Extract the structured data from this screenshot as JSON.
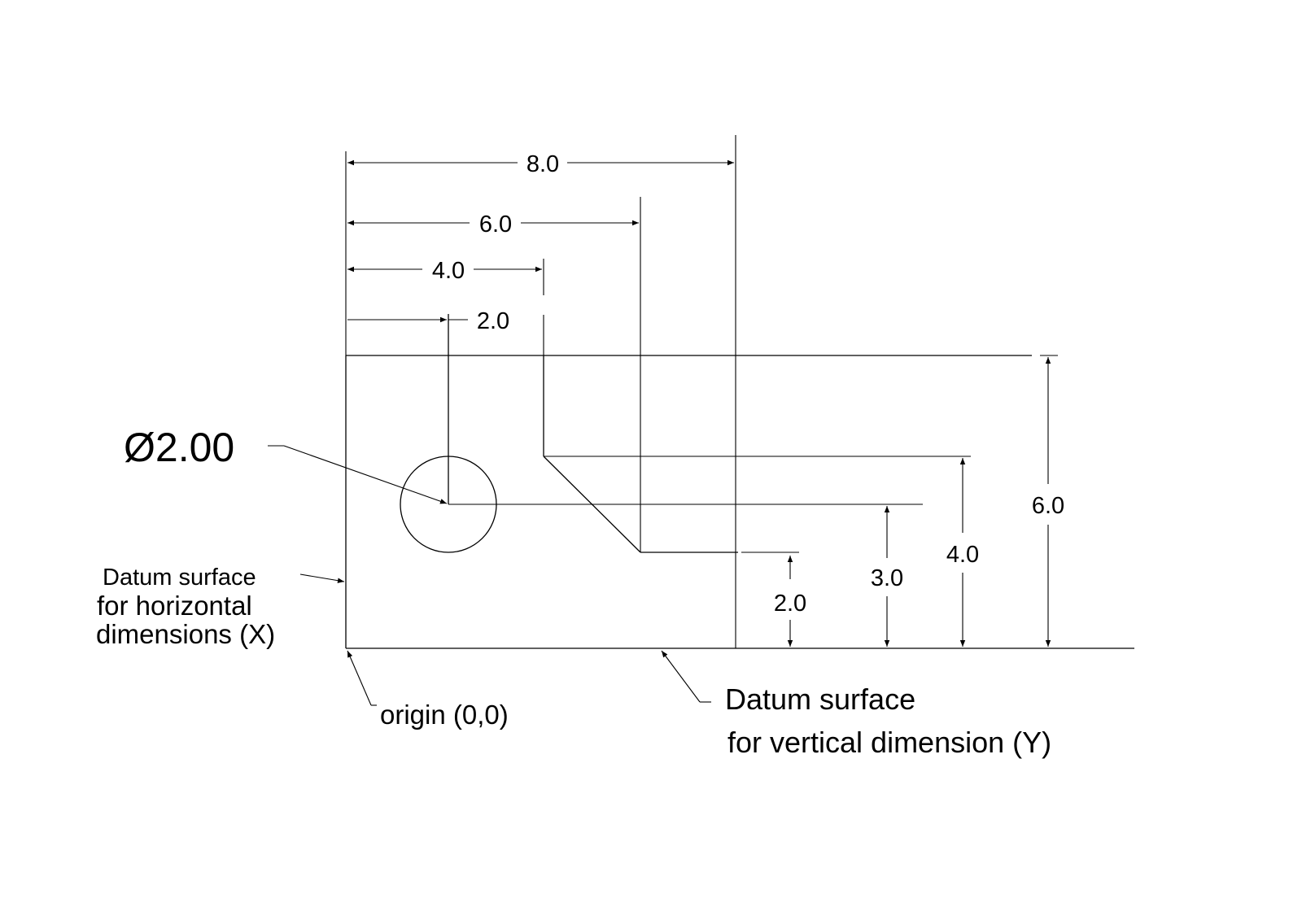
{
  "horizontal_dimensions": [
    "8.0",
    "6.0",
    "4.0",
    "2.0"
  ],
  "vertical_dimensions": [
    "6.0",
    "4.0",
    "3.0",
    "2.0"
  ],
  "hole_callout": "Ø2.00",
  "notes": {
    "datum_x_line1": "Datum surface",
    "datum_x_line2": "for horizontal",
    "datum_x_line3": "dimensions (X)",
    "origin": "origin (0,0)",
    "datum_y_line1": "Datum surface",
    "datum_y_line2": "for vertical dimension (Y)"
  }
}
